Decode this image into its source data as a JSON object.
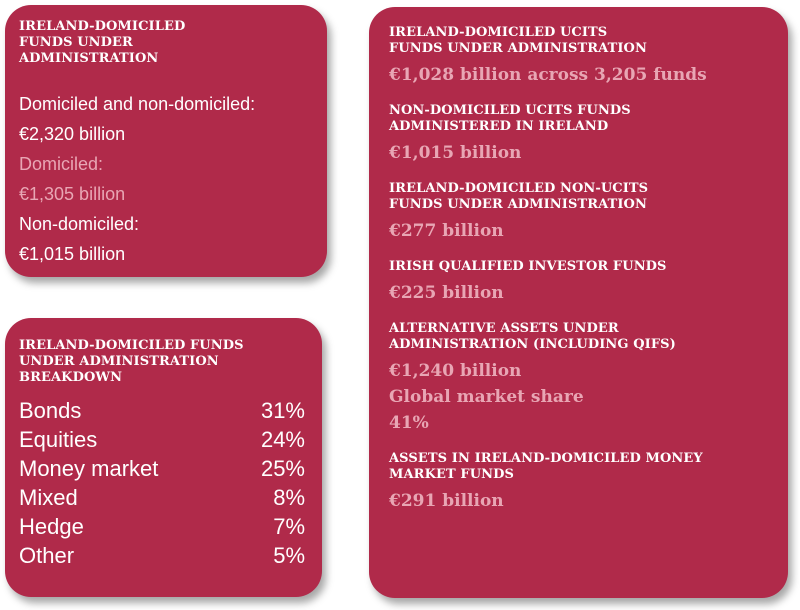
{
  "top_left": {
    "heading": "IRELAND-DOMICILED\nFUNDS UNDER\nADMINISTRATION",
    "lines": [
      {
        "text": "Domiciled and non-domiciled:",
        "highlight": false
      },
      {
        "text": "€2,320 billion",
        "highlight": false
      },
      {
        "text": "Domiciled:",
        "highlight": true
      },
      {
        "text": "€1,305 billion",
        "highlight": true
      },
      {
        "text": "Non-domiciled:",
        "highlight": false
      },
      {
        "text": "€1,015 billion",
        "highlight": false
      }
    ]
  },
  "breakdown": {
    "heading": "IRELAND-DOMICILED FUNDS\nUNDER ADMINISTRATION\nBREAKDOWN",
    "rows": [
      {
        "label": "Bonds",
        "value": "31%"
      },
      {
        "label": "Equities",
        "value": "24%"
      },
      {
        "label": "Money market",
        "value": "25%"
      },
      {
        "label": "Mixed",
        "value": "8%"
      },
      {
        "label": "Hedge",
        "value": "7%"
      },
      {
        "label": "Other",
        "value": "5%"
      }
    ]
  },
  "right": {
    "items": [
      {
        "heading": "IRELAND-DOMICILED UCITS\nFUNDS UNDER ADMINISTRATION",
        "values": [
          "€1,028 billion across 3,205 funds"
        ]
      },
      {
        "heading": "NON-DOMICILED UCITS FUNDS\nADMINISTERED IN IRELAND",
        "values": [
          "€1,015 billion"
        ]
      },
      {
        "heading": "IRELAND-DOMICILED NON-UCITS\nFUNDS UNDER ADMINISTRATION",
        "values": [
          "€277 billion"
        ]
      },
      {
        "heading": "IRISH QUALIFIED INVESTOR FUNDS",
        "values": [
          "€225 billion"
        ]
      },
      {
        "heading": "ALTERNATIVE ASSETS UNDER\nADMINISTRATION (INCLUDING QIFS)",
        "values": [
          "€1,240 billion",
          "Global market share",
          "41%"
        ]
      },
      {
        "heading": "ASSETS IN IRELAND-DOMICILED MONEY\nMARKET FUNDS",
        "values": [
          "€291 billion"
        ]
      }
    ]
  },
  "colors": {
    "card": "#b02a4a",
    "highlight": "#e8a6b4",
    "text": "#ffffff"
  }
}
